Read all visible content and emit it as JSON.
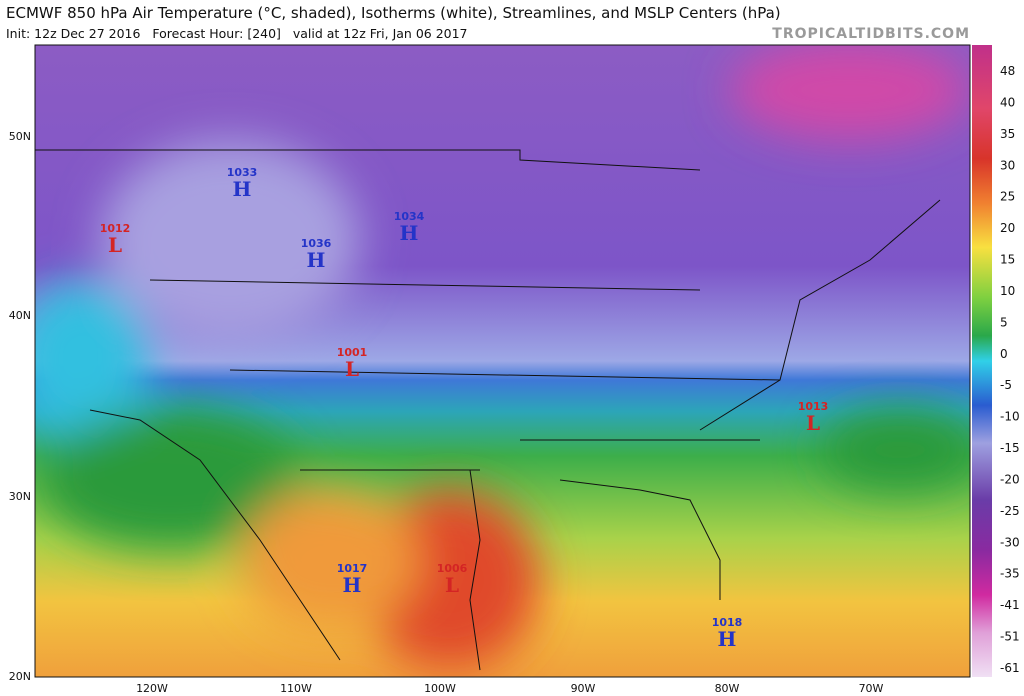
{
  "header": {
    "title": "ECMWF 850 hPa Air Temperature (°C, shaded), Isotherms (white), Streamlines, and MSLP Centers (hPa)",
    "info": "Init: 12z Dec 27 2016   Forecast Hour: [240]   valid at 12z Fri, Jan 06 2017",
    "site": "TROPICALTIDBITS.COM"
  },
  "map": {
    "latitudes": [
      "50N",
      "40N",
      "30N",
      "20N"
    ],
    "longitudes": [
      "120W",
      "110W",
      "100W",
      "90W",
      "80W",
      "70W"
    ],
    "pressure_centers": [
      {
        "value": 1012,
        "type": "L"
      },
      {
        "value": 1033,
        "type": "H"
      },
      {
        "value": 1036,
        "type": "H"
      },
      {
        "value": 1034,
        "type": "H"
      },
      {
        "value": 1001,
        "type": "L"
      },
      {
        "value": 1013,
        "type": "L"
      },
      {
        "value": 1017,
        "type": "H"
      },
      {
        "value": 1006,
        "type": "L"
      },
      {
        "value": 1018,
        "type": "H"
      }
    ]
  },
  "colorbar": {
    "ticks": [
      48,
      40,
      35,
      30,
      25,
      20,
      15,
      10,
      5,
      0,
      -5,
      -10,
      -15,
      -20,
      -25,
      -30,
      -35,
      -41,
      -51,
      -61
    ]
  }
}
